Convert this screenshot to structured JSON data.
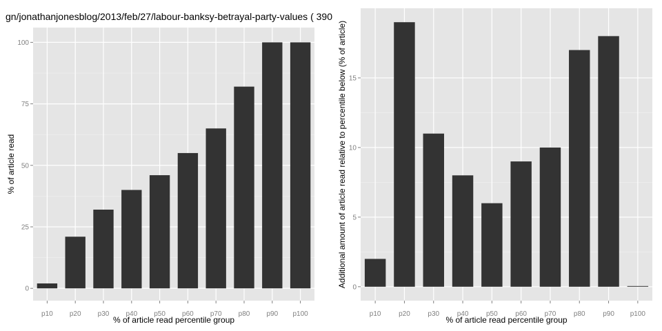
{
  "chart_data": [
    {
      "type": "bar",
      "title": "gn/jonathanjonesblog/2013/feb/27/labour-banksy-betrayal-party-values ( 390",
      "xlabel": "% of article read percentile group",
      "ylabel": "% of article read",
      "categories": [
        "p10",
        "p20",
        "p30",
        "p40",
        "p50",
        "p60",
        "p70",
        "p80",
        "p90",
        "p100"
      ],
      "values": [
        2,
        21,
        32,
        40,
        46,
        55,
        65,
        82,
        100,
        100
      ],
      "ylim": [
        -5,
        106
      ],
      "yticks": [
        0,
        25,
        50,
        75,
        100
      ],
      "ytick_labels": [
        "0",
        "25",
        "50",
        "75",
        "100"
      ],
      "grid": true,
      "bar_color": "#333333",
      "panel_color": "#e5e5e5",
      "grid_color": "#ffffff"
    },
    {
      "type": "bar",
      "title": "",
      "xlabel": "% of article read percentile group",
      "ylabel": "Additional amount of article read relative to percentile below (% of article)",
      "categories": [
        "p10",
        "p20",
        "p30",
        "p40",
        "p50",
        "p60",
        "p70",
        "p80",
        "p90",
        "p100"
      ],
      "values": [
        2,
        19,
        11,
        8,
        6,
        9,
        10,
        17,
        18,
        0
      ],
      "ylim": [
        -1,
        20
      ],
      "yticks": [
        0,
        5,
        10,
        15
      ],
      "ytick_labels": [
        "0",
        "5",
        "10",
        "15"
      ],
      "grid": true,
      "bar_color": "#333333",
      "panel_color": "#e5e5e5",
      "grid_color": "#ffffff"
    }
  ]
}
